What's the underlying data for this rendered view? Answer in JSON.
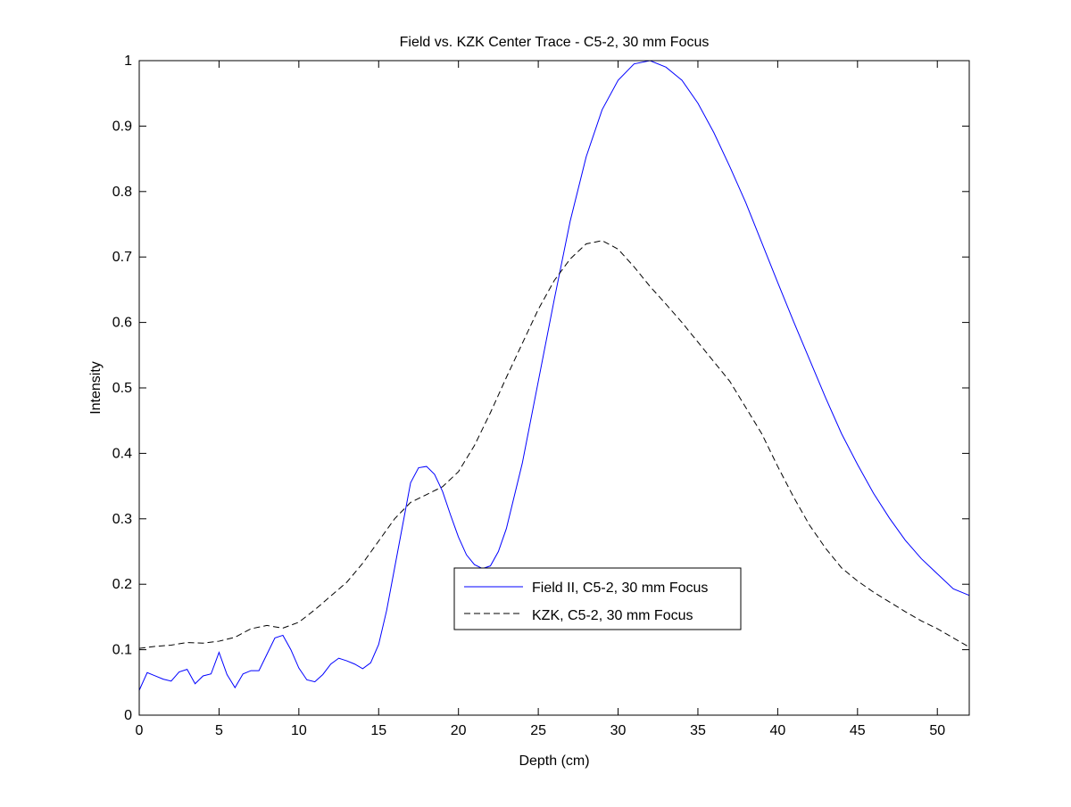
{
  "chart_data": {
    "type": "line",
    "title": "Field vs. KZK Center Trace - C5-2, 30 mm Focus",
    "xlabel": "Depth (cm)",
    "ylabel": "Intensity",
    "xlim": [
      0,
      52
    ],
    "ylim": [
      0,
      1
    ],
    "xticks": [
      0,
      5,
      10,
      15,
      20,
      25,
      30,
      35,
      40,
      45,
      50
    ],
    "yticks": [
      0,
      0.1,
      0.2,
      0.3,
      0.4,
      0.5,
      0.6,
      0.7,
      0.8,
      0.9,
      1
    ],
    "grid": false,
    "legend_position": "center",
    "series": [
      {
        "name": "Field II, C5-2, 30 mm Focus",
        "color": "#0000ff",
        "style": "solid",
        "x": [
          0,
          0.5,
          1,
          1.5,
          2,
          2.5,
          3,
          3.5,
          4,
          4.5,
          5,
          5.5,
          6,
          6.5,
          7,
          7.5,
          8,
          8.5,
          9,
          9.5,
          10,
          10.5,
          11,
          11.5,
          12,
          12.5,
          13,
          13.5,
          14,
          14.5,
          15,
          15.5,
          16,
          16.5,
          17,
          17.5,
          18,
          18.5,
          19,
          19.5,
          20,
          20.5,
          21,
          21.5,
          22,
          22.5,
          23,
          24,
          25,
          26,
          27,
          28,
          29,
          30,
          31,
          32,
          33,
          34,
          35,
          36,
          37,
          38,
          39,
          40,
          41,
          42,
          43,
          44,
          45,
          46,
          47,
          48,
          49,
          50,
          51,
          52
        ],
        "y": [
          0.038,
          0.065,
          0.06,
          0.055,
          0.052,
          0.066,
          0.07,
          0.048,
          0.06,
          0.063,
          0.096,
          0.062,
          0.042,
          0.063,
          0.068,
          0.068,
          0.093,
          0.118,
          0.122,
          0.1,
          0.072,
          0.054,
          0.051,
          0.062,
          0.078,
          0.087,
          0.083,
          0.078,
          0.071,
          0.08,
          0.108,
          0.16,
          0.225,
          0.29,
          0.355,
          0.378,
          0.38,
          0.368,
          0.342,
          0.306,
          0.272,
          0.245,
          0.23,
          0.224,
          0.228,
          0.25,
          0.285,
          0.385,
          0.51,
          0.635,
          0.755,
          0.853,
          0.925,
          0.97,
          0.995,
          1.0,
          0.99,
          0.97,
          0.935,
          0.89,
          0.838,
          0.783,
          0.722,
          0.661,
          0.601,
          0.543,
          0.485,
          0.43,
          0.383,
          0.339,
          0.301,
          0.267,
          0.239,
          0.216,
          0.193,
          0.183
        ]
      },
      {
        "name": "KZK, C5-2, 30 mm Focus",
        "color": "#000000",
        "style": "dashed",
        "x": [
          0,
          1,
          2,
          3,
          4,
          5,
          6,
          7,
          8,
          9,
          10,
          11,
          12,
          13,
          14,
          15,
          16,
          17,
          18,
          19,
          20,
          21,
          22,
          23,
          24,
          25,
          26,
          27,
          28,
          29,
          30,
          31,
          32,
          33,
          34,
          35,
          36,
          37,
          38,
          39,
          40,
          41,
          42,
          43,
          44,
          45,
          46,
          47,
          48,
          49,
          50,
          51,
          52
        ],
        "y": [
          0.102,
          0.105,
          0.107,
          0.111,
          0.11,
          0.113,
          0.119,
          0.132,
          0.137,
          0.133,
          0.142,
          0.161,
          0.182,
          0.203,
          0.232,
          0.266,
          0.3,
          0.325,
          0.337,
          0.349,
          0.372,
          0.412,
          0.462,
          0.516,
          0.568,
          0.62,
          0.664,
          0.697,
          0.72,
          0.725,
          0.712,
          0.685,
          0.655,
          0.628,
          0.6,
          0.57,
          0.54,
          0.51,
          0.47,
          0.43,
          0.38,
          0.333,
          0.29,
          0.255,
          0.225,
          0.205,
          0.188,
          0.173,
          0.158,
          0.144,
          0.132,
          0.118,
          0.104
        ]
      }
    ]
  }
}
